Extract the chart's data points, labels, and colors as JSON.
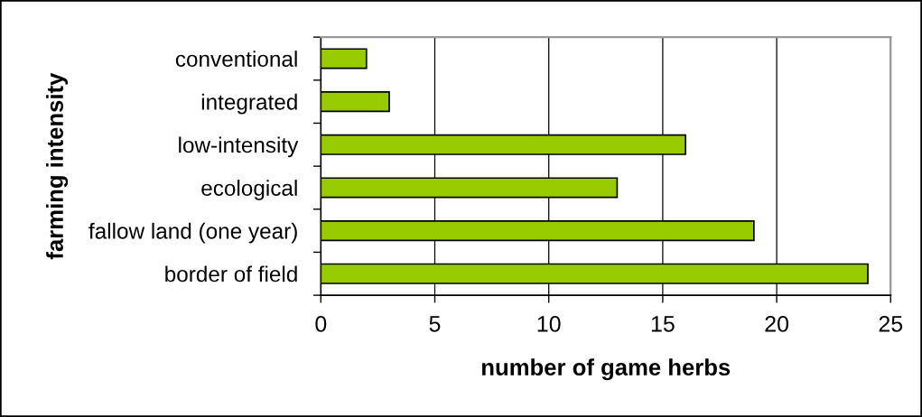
{
  "chart_data": {
    "type": "bar",
    "orientation": "horizontal",
    "categories": [
      "conventional",
      "integrated",
      "low-intensity",
      "ecological",
      "fallow land (one year)",
      "border of field"
    ],
    "values": [
      2,
      3,
      16,
      13,
      19,
      24
    ],
    "color": "#99cc00",
    "xlabel": "number of game herbs",
    "ylabel": "farming intensity",
    "xlim": [
      0,
      25
    ],
    "xticks": [
      0,
      5,
      10,
      15,
      20,
      25
    ],
    "grid": "x"
  }
}
